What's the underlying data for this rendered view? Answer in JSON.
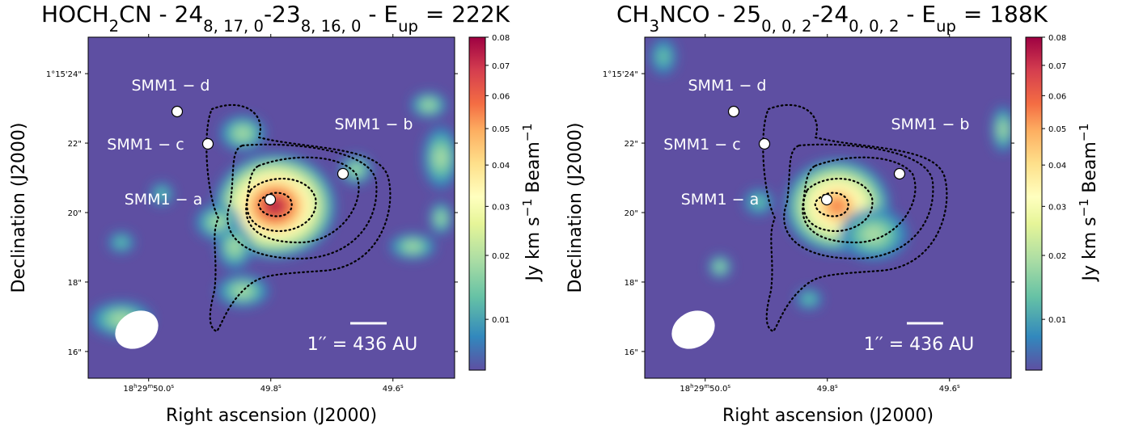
{
  "chart_data": [
    {
      "type": "image",
      "title": [
        "HOCH",
        "2",
        "CN - 24",
        "8, 17, 0",
        "-23",
        "8, 16, 0",
        " - E",
        "up",
        " = 222K"
      ],
      "xlabel": "Right ascension (J2000)",
      "ylabel": "Declination (J2000)",
      "xlim": [
        50.099,
        49.499
      ],
      "xticks": [
        {
          "value": 50.0,
          "label": [
            "18",
            "h",
            "29",
            "m",
            "50.0",
            "s"
          ]
        },
        {
          "value": 49.8,
          "label": [
            "49.8",
            "s"
          ]
        },
        {
          "value": 49.6,
          "label": [
            "49.6",
            "s"
          ]
        }
      ],
      "ylim": [
        15.23,
        25.05
      ],
      "yticks": [
        {
          "value": 24,
          "label": "1°15'24\""
        },
        {
          "value": 22,
          "label": "22\""
        },
        {
          "value": 20,
          "label": "20\""
        },
        {
          "value": 18,
          "label": "18\""
        },
        {
          "value": 16,
          "label": "16\""
        }
      ],
      "colorbar": {
        "label": [
          "Jy km s",
          "−1",
          " Beam",
          "−1"
        ],
        "clim": [
          0.0045,
          0.08
        ],
        "scale": "sqrt",
        "ticks": [
          0.01,
          0.02,
          0.03,
          0.04,
          0.05,
          0.06,
          0.07,
          0.08
        ]
      },
      "sources": [
        "SMM1 − a",
        "SMM1 − b",
        "SMM1 − c",
        "SMM1 − d"
      ],
      "scale_bar": "1′′ = 436 AU"
    },
    {
      "type": "image",
      "title": [
        "CH",
        "3",
        "NCO - 25",
        "0, 0, 2",
        "-24",
        "0, 0, 2",
        " - E",
        "up",
        " = 188K"
      ],
      "xlabel": "Right ascension (J2000)",
      "ylabel": "Declination (J2000)",
      "xlim": [
        50.099,
        49.499
      ],
      "xticks": [
        {
          "value": 50.0,
          "label": [
            "18",
            "h",
            "29",
            "m",
            "50.0",
            "s"
          ]
        },
        {
          "value": 49.8,
          "label": [
            "49.8",
            "s"
          ]
        },
        {
          "value": 49.6,
          "label": [
            "49.6",
            "s"
          ]
        }
      ],
      "ylim": [
        15.23,
        25.05
      ],
      "yticks": [
        {
          "value": 24,
          "label": "1°15'24\""
        },
        {
          "value": 22,
          "label": "22\""
        },
        {
          "value": 20,
          "label": "20\""
        },
        {
          "value": 18,
          "label": "18\""
        },
        {
          "value": 16,
          "label": "16\""
        }
      ],
      "colorbar": {
        "label": [
          "Jy km s",
          "−1",
          " Beam",
          "−1"
        ],
        "clim": [
          0.0045,
          0.08
        ],
        "scale": "sqrt",
        "ticks": [
          0.01,
          0.02,
          0.03,
          0.04,
          0.05,
          0.06,
          0.07,
          0.08
        ]
      },
      "sources": [
        "SMM1 − a",
        "SMM1 − b",
        "SMM1 − c",
        "SMM1 − d"
      ],
      "scale_bar": "1′′ = 436 AU"
    }
  ]
}
